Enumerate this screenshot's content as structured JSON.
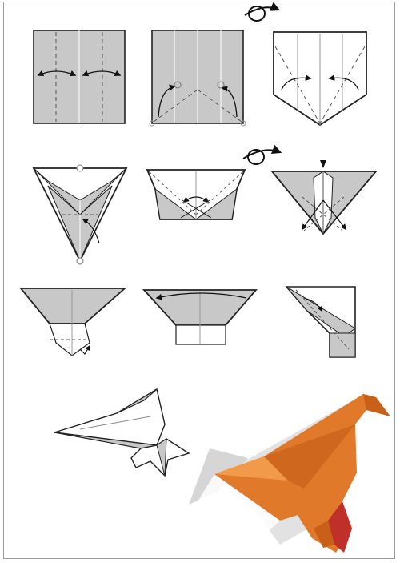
{
  "diagram": {
    "kind": "origami-instructions",
    "steps_shown": 9,
    "colors": {
      "paper_gray": "#c8c8c8",
      "paper_white": "#ffffff",
      "outline": "#222222",
      "crease": "#666666",
      "finished_orange": "#e07a2a",
      "finished_orange_dark": "#c9601a",
      "finished_red": "#c0302a",
      "shadow_gray": "#d6d6d6"
    },
    "icons": [
      "flip-over-icon",
      "fold-arrow-icon",
      "push-down-icon"
    ]
  }
}
